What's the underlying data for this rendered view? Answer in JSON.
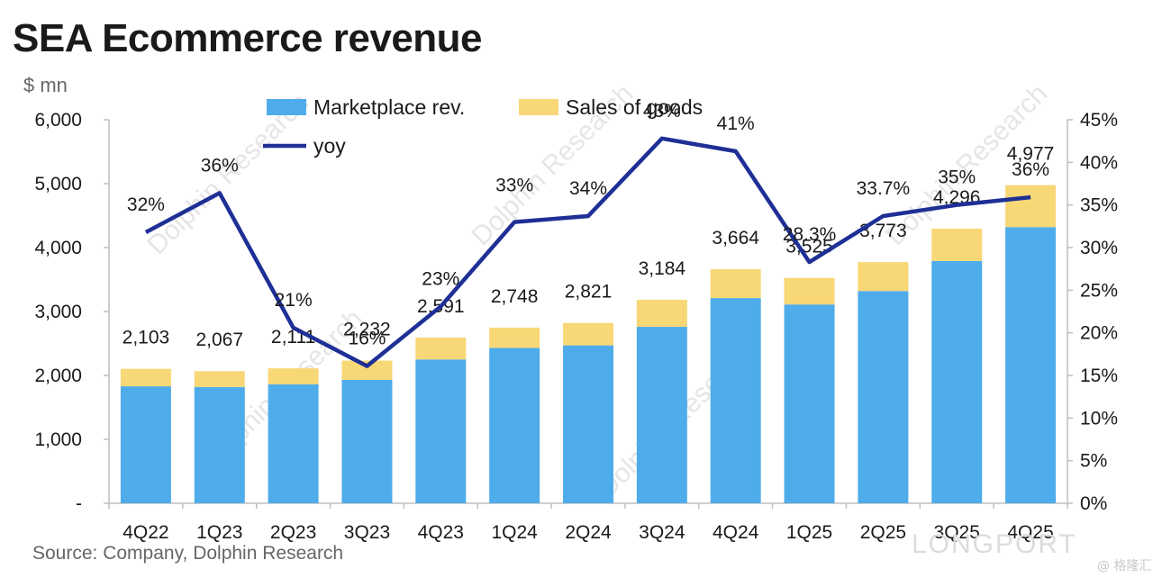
{
  "chart_data": {
    "type": "bar",
    "title": "SEA Ecommerce revenue",
    "unit_label": "$ mn",
    "categories": [
      "4Q22",
      "1Q23",
      "2Q23",
      "3Q23",
      "4Q23",
      "1Q24",
      "2Q24",
      "3Q24",
      "4Q24",
      "1Q25",
      "2Q25",
      "3Q25",
      "4Q25"
    ],
    "stacked": true,
    "series": [
      {
        "name": "Marketplace rev.",
        "type": "bar",
        "color": "#4facea",
        "values": [
          1830,
          1820,
          1860,
          1930,
          2250,
          2430,
          2470,
          2760,
          3210,
          3110,
          3320,
          3790,
          4320
        ]
      },
      {
        "name": "Sales of goods",
        "type": "bar",
        "color": "#f8d776",
        "values": [
          273,
          247,
          251,
          302,
          341,
          318,
          351,
          424,
          454,
          415,
          453,
          506,
          657
        ]
      },
      {
        "name": "yoy",
        "type": "line",
        "axis": "right",
        "color": "#1e2f96",
        "values": [
          31.8,
          36.4,
          20.6,
          16.1,
          23.1,
          33.0,
          33.7,
          42.8,
          41.3,
          28.3,
          33.7,
          35.0,
          35.9
        ]
      }
    ],
    "total_labels": [
      "2,103",
      "2,067",
      "2,111",
      "2,232",
      "2,591",
      "2,748",
      "2,821",
      "3,184",
      "3,664",
      "3,525",
      "3,773",
      "4,296",
      "4,977"
    ],
    "yoy_labels": [
      "32%",
      "36%",
      "21%",
      "16%",
      "23%",
      "33%",
      "34%",
      "43%",
      "41%",
      "28.3%",
      "33.7%",
      "35%",
      "36%"
    ],
    "y_left": {
      "range": [
        0,
        6000
      ],
      "ticks": [
        "-",
        "1,000",
        "2,000",
        "3,000",
        "4,000",
        "5,000",
        "6,000"
      ]
    },
    "y_right": {
      "range": [
        0,
        45
      ],
      "ticks": [
        "0%",
        "5%",
        "10%",
        "15%",
        "20%",
        "25%",
        "30%",
        "35%",
        "40%",
        "45%"
      ]
    },
    "legend_position": "top-left",
    "grid": false
  },
  "source": "Source: Company, Dolphin Research",
  "watermarks": {
    "main": "Dolphin Research",
    "brand": "LONGPORT",
    "corner": "@ 格隆汇"
  }
}
